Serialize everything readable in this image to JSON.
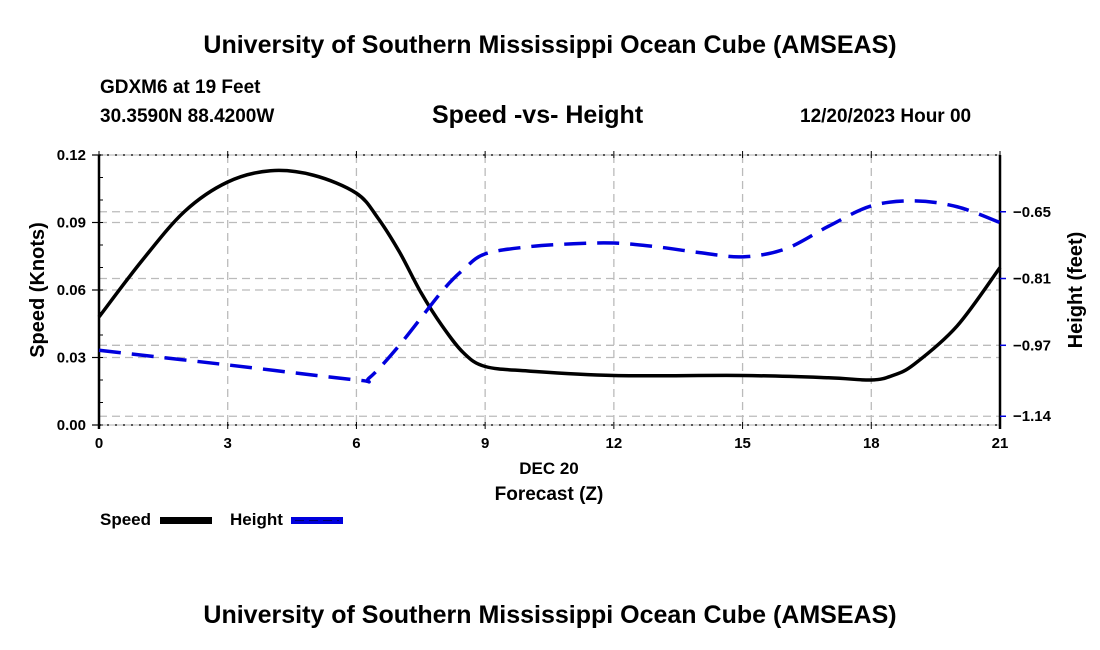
{
  "header": {
    "title_top": "University of Southern Mississippi Ocean Cube (AMSEAS)",
    "title_bottom": "University of Southern Mississippi Ocean Cube (AMSEAS)",
    "station": "GDXM6 at 19 Feet",
    "coordinates": "30.3590N  88.4200W",
    "datetime": "12/20/2023 Hour 00"
  },
  "colors": {
    "speed": "#000000",
    "height": "#0000dd",
    "grid": "#bbbbbb"
  },
  "chart_data": {
    "type": "line",
    "title": "Speed -vs- Height",
    "xlabel": "Forecast (Z)",
    "xlabel_date": "DEC 20",
    "ylabel": "Speed (Knots)",
    "y2label": "Height (feet)",
    "xlim": [
      0,
      21
    ],
    "x_ticks": [
      0,
      3,
      6,
      9,
      12,
      15,
      18,
      21
    ],
    "x_tick_labels": [
      "0",
      "3",
      "6",
      "9",
      "12",
      "15",
      "18",
      "21"
    ],
    "ylim": [
      0,
      0.12
    ],
    "y_ticks": [
      0,
      0.03,
      0.06,
      0.09,
      0.12
    ],
    "y_tick_labels": [
      "0.00",
      "0.03",
      "0.06",
      "0.09",
      "0.12"
    ],
    "y2lim": [
      -1.161,
      -0.514
    ],
    "y2_ticks": [
      -0.65,
      -0.81,
      -0.97,
      -1.14
    ],
    "y2_tick_labels": [
      "−0.65",
      "−0.81",
      "−0.97",
      "−1.14"
    ],
    "grid": true,
    "legend_position": "bottom-left",
    "series": [
      {
        "name": "Speed",
        "axis": "left",
        "style": "solid",
        "x": [
          0,
          1,
          2,
          3,
          4,
          5,
          6,
          6.5,
          7,
          7.5,
          8,
          8.5,
          9,
          10,
          12,
          15,
          17,
          18,
          18.5,
          19,
          20,
          21
        ],
        "values": [
          0.048,
          0.073,
          0.095,
          0.108,
          0.113,
          0.111,
          0.103,
          0.092,
          0.077,
          0.059,
          0.044,
          0.032,
          0.026,
          0.024,
          0.022,
          0.022,
          0.021,
          0.02,
          0.022,
          0.027,
          0.044,
          0.07
        ]
      },
      {
        "name": "Height",
        "axis": "right",
        "style": "dashed",
        "x": [
          0,
          3,
          6,
          6.3,
          7,
          8,
          8.5,
          9,
          10,
          11,
          12,
          13,
          14,
          15,
          16,
          17,
          18,
          19,
          20,
          21
        ],
        "values": [
          -0.982,
          -1.017,
          -1.053,
          -1.048,
          -0.97,
          -0.84,
          -0.788,
          -0.751,
          -0.734,
          -0.727,
          -0.725,
          -0.734,
          -0.748,
          -0.758,
          -0.739,
          -0.685,
          -0.636,
          -0.624,
          -0.638,
          -0.676
        ]
      }
    ]
  },
  "legend": [
    {
      "label": "Speed",
      "series": "Speed"
    },
    {
      "label": "Height",
      "series": "Height"
    }
  ]
}
